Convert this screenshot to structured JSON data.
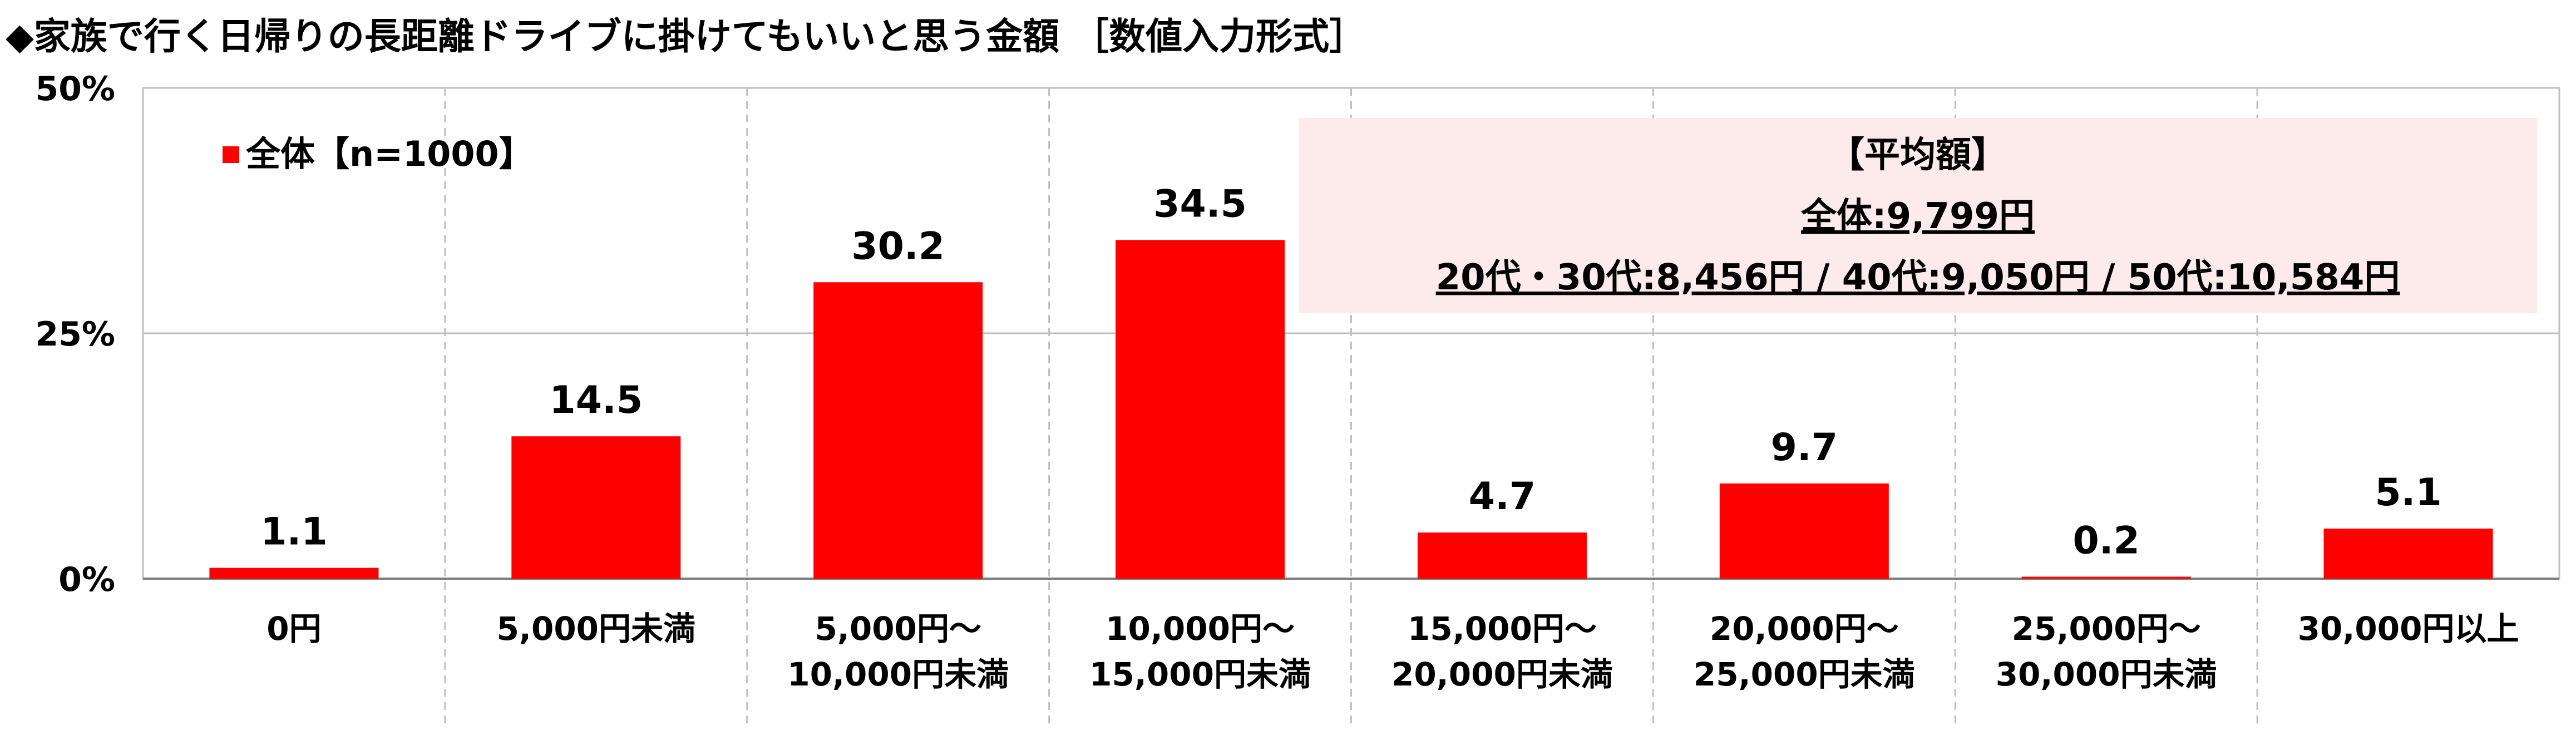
{
  "title": "◆家族で行く日帰りの長距離ドライブに掛けてもいいと思う金額 ［数値入力形式］",
  "colors": {
    "bar": "#ff0000",
    "annotation_bg": "#fdeaea",
    "grid": "#bfbfbf"
  },
  "annotation": {
    "heading": "【平均額】",
    "line1": "全体:9,799円",
    "line2": "20代・30代:8,456円 / 40代:9,050円 / 50代:10,584円"
  },
  "chart_data": {
    "type": "bar",
    "title": "◆家族で行く日帰りの長距離ドライブに掛けてもいいと思う金額 ［数値入力形式］",
    "categories": [
      [
        "0円"
      ],
      [
        "5,000円未満"
      ],
      [
        "5,000円～",
        "10,000円未満"
      ],
      [
        "10,000円～",
        "15,000円未満"
      ],
      [
        "15,000円～",
        "20,000円未満"
      ],
      [
        "20,000円～",
        "25,000円未満"
      ],
      [
        "25,000円～",
        "30,000円未満"
      ],
      [
        "30,000円以上"
      ]
    ],
    "series": [
      {
        "name": "全体【n=1000】",
        "values": [
          1.1,
          14.5,
          30.2,
          34.5,
          4.7,
          9.7,
          0.2,
          5.1
        ]
      }
    ],
    "value_labels": [
      "1.1",
      "14.5",
      "30.2",
      "34.5",
      "4.7",
      "9.7",
      "0.2",
      "5.1"
    ],
    "ylim": [
      0,
      50
    ],
    "yticks": [
      0,
      25,
      50
    ],
    "ytick_labels": [
      "0%",
      "25%",
      "50%"
    ],
    "grid": true,
    "legend_position": "top-left"
  }
}
